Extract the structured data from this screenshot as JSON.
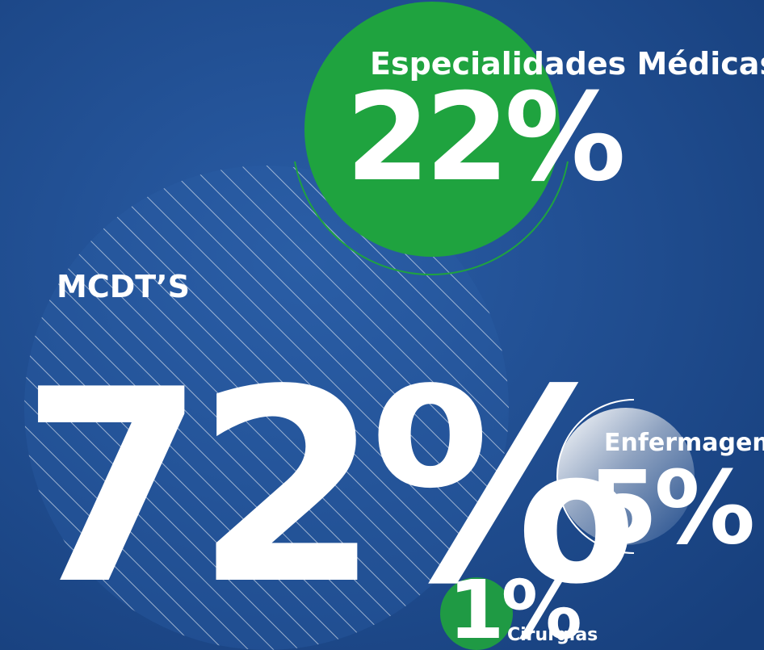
{
  "chart_data": {
    "type": "bubble",
    "categories": [
      "MCDT’S",
      "Especialidades Médicas",
      "Enfermagem",
      "Cirurgias"
    ],
    "values": [
      72,
      22,
      5,
      1
    ],
    "value_labels": [
      "72%",
      "22%",
      "5%",
      "1%"
    ],
    "colors": [
      "#2a5ea6",
      "#1fa33f",
      "#6f86a8",
      "#1f9a44"
    ]
  }
}
